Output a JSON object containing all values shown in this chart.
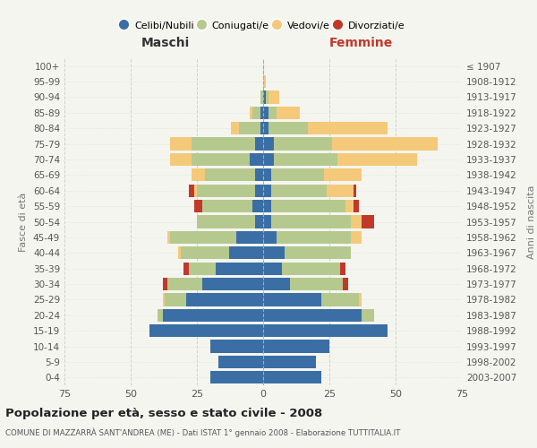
{
  "age_groups": [
    "0-4",
    "5-9",
    "10-14",
    "15-19",
    "20-24",
    "25-29",
    "30-34",
    "35-39",
    "40-44",
    "45-49",
    "50-54",
    "55-59",
    "60-64",
    "65-69",
    "70-74",
    "75-79",
    "80-84",
    "85-89",
    "90-94",
    "95-99",
    "100+"
  ],
  "birth_years": [
    "2003-2007",
    "1998-2002",
    "1993-1997",
    "1988-1992",
    "1983-1987",
    "1978-1982",
    "1973-1977",
    "1968-1972",
    "1963-1967",
    "1958-1962",
    "1953-1957",
    "1948-1952",
    "1943-1947",
    "1938-1942",
    "1933-1937",
    "1928-1932",
    "1923-1927",
    "1918-1922",
    "1913-1917",
    "1908-1912",
    "≤ 1907"
  ],
  "colors": {
    "celibi": "#3a6ea5",
    "coniugati": "#b5c98e",
    "vedovi": "#f5c97a",
    "divorziati": "#c0392b"
  },
  "maschi": {
    "celibi": [
      20,
      17,
      20,
      43,
      38,
      29,
      23,
      18,
      13,
      10,
      3,
      4,
      3,
      3,
      5,
      3,
      1,
      1,
      0,
      0,
      0
    ],
    "coniugati": [
      0,
      0,
      0,
      0,
      2,
      8,
      13,
      10,
      18,
      25,
      22,
      19,
      22,
      19,
      22,
      24,
      8,
      3,
      1,
      0,
      0
    ],
    "vedovi": [
      0,
      0,
      0,
      0,
      0,
      1,
      0,
      0,
      1,
      1,
      0,
      0,
      1,
      5,
      8,
      8,
      3,
      1,
      0,
      0,
      0
    ],
    "divorziati": [
      0,
      0,
      0,
      0,
      0,
      0,
      2,
      2,
      0,
      0,
      0,
      3,
      2,
      0,
      0,
      0,
      0,
      0,
      0,
      0,
      0
    ]
  },
  "femmine": {
    "celibi": [
      22,
      20,
      25,
      47,
      37,
      22,
      10,
      7,
      8,
      5,
      3,
      3,
      3,
      3,
      4,
      4,
      2,
      2,
      1,
      0,
      0
    ],
    "coniugati": [
      0,
      0,
      0,
      0,
      5,
      14,
      20,
      22,
      25,
      28,
      30,
      28,
      21,
      20,
      24,
      22,
      15,
      3,
      1,
      0,
      0
    ],
    "vedovi": [
      0,
      0,
      0,
      0,
      0,
      1,
      0,
      0,
      0,
      4,
      4,
      3,
      10,
      14,
      30,
      40,
      30,
      9,
      4,
      1,
      0
    ],
    "divorziati": [
      0,
      0,
      0,
      0,
      0,
      0,
      2,
      2,
      0,
      0,
      5,
      2,
      1,
      0,
      0,
      0,
      0,
      0,
      0,
      0,
      0
    ]
  },
  "xlim": 75,
  "title": "Popolazione per età, sesso e stato civile - 2008",
  "subtitle": "COMUNE DI MAZZARRÀ SANT'ANDREA (ME) - Dati ISTAT 1° gennaio 2008 - Elaborazione TUTTITALIA.IT",
  "ylabel_left": "Fasce di età",
  "ylabel_right": "Anni di nascita",
  "xlabel_maschi": "Maschi",
  "xlabel_femmine": "Femmine",
  "legend_labels": [
    "Celibi/Nubili",
    "Coniugati/e",
    "Vedovi/e",
    "Divorziati/e"
  ],
  "bg_color": "#f5f5f0",
  "grid_color": "#cccccc"
}
